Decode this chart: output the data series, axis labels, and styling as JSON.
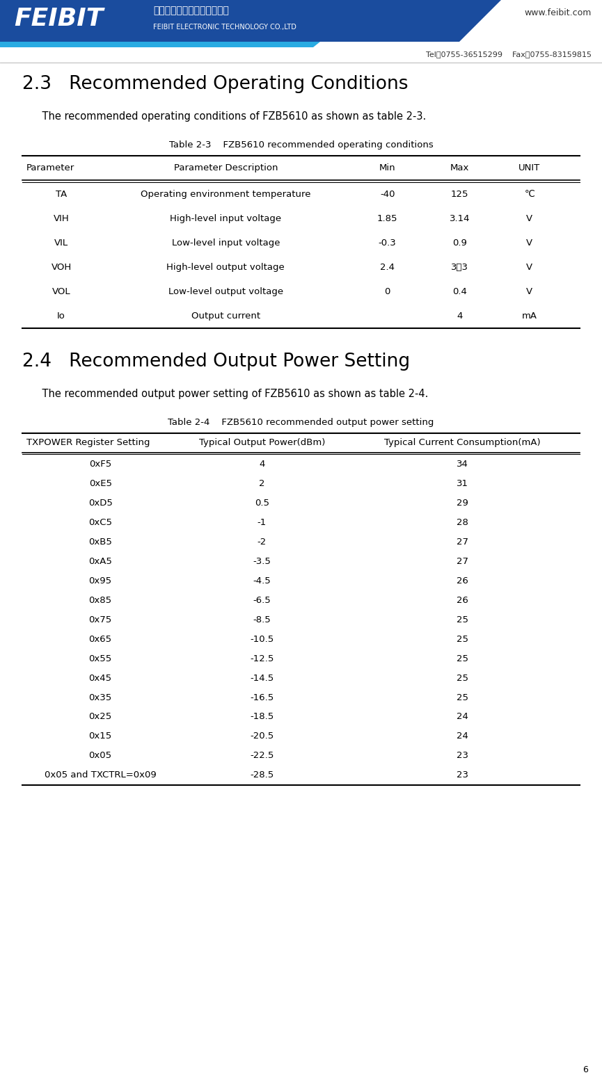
{
  "page_width": 8.65,
  "page_height": 15.56,
  "dpi": 100,
  "bg_color": "#ffffff",
  "header_website": "www.feibit.com",
  "header_tel_fax": "Tel：0755-36515299    Fax：0755-83159815",
  "section1_title": "2.3   Recommended Operating Conditions",
  "section1_intro": "    The recommended operating conditions of FZB5610 as shown as table 2-3.",
  "table1_caption": "Table 2-3    FZB5610 recommended operating conditions",
  "table1_headers": [
    "Parameter",
    "Parameter Description",
    "Min",
    "Max",
    "UNIT"
  ],
  "table1_header_aligns": [
    "left",
    "center",
    "center",
    "center",
    "center"
  ],
  "table1_data": [
    [
      "TA",
      "Operating environment temperature",
      "-40",
      "125",
      "℃"
    ],
    [
      "VIH",
      "High-level input voltage",
      "1.85",
      "3.14",
      "V"
    ],
    [
      "VIL",
      "Low-level input voltage",
      "-0.3",
      "0.9",
      "V"
    ],
    [
      "VOH",
      "High-level output voltage",
      "2.4",
      "3．3",
      "V"
    ],
    [
      "VOL",
      "Low-level output voltage",
      "0",
      "0.4",
      "V"
    ],
    [
      "Io",
      "Output current",
      "",
      "4",
      "mA"
    ]
  ],
  "table1_data_aligns": [
    "center",
    "center",
    "center",
    "center",
    "center"
  ],
  "section2_title": "2.4   Recommended Output Power Setting",
  "section2_intro": "    The recommended output power setting of FZB5610 as shown as table 2-4.",
  "table2_caption": "Table 2-4    FZB5610 recommended output power setting",
  "table2_headers": [
    "TXPOWER Register Setting",
    "Typical Output Power(dBm)",
    "Typical Current Consumption(mA)"
  ],
  "table2_header_aligns": [
    "left",
    "center",
    "center"
  ],
  "table2_data": [
    [
      "0xF5",
      "4",
      "34"
    ],
    [
      "0xE5",
      "2",
      "31"
    ],
    [
      "0xD5",
      "0.5",
      "29"
    ],
    [
      "0xC5",
      "-1",
      "28"
    ],
    [
      "0xB5",
      "-2",
      "27"
    ],
    [
      "0xA5",
      "-3.5",
      "27"
    ],
    [
      "0x95",
      "-4.5",
      "26"
    ],
    [
      "0x85",
      "-6.5",
      "26"
    ],
    [
      "0x75",
      "-8.5",
      "25"
    ],
    [
      "0x65",
      "-10.5",
      "25"
    ],
    [
      "0x55",
      "-12.5",
      "25"
    ],
    [
      "0x45",
      "-14.5",
      "25"
    ],
    [
      "0x35",
      "-16.5",
      "25"
    ],
    [
      "0x25",
      "-18.5",
      "24"
    ],
    [
      "0x15",
      "-20.5",
      "24"
    ],
    [
      "0x05",
      "-22.5",
      "23"
    ],
    [
      "0x05 and TXCTRL=0x09",
      "-28.5",
      "23"
    ]
  ],
  "table2_data_aligns": [
    "center",
    "center",
    "center"
  ],
  "page_number": "6",
  "header_blue": "#1a4c9e",
  "header_cyan": "#29abe2",
  "header_dark_blue": "#003399",
  "text_color": "#000000",
  "grey_text": "#555555",
  "title_fontsize": 19,
  "body_fontsize": 10.5,
  "caption_fontsize": 9.5,
  "table_fontsize": 9.5,
  "small_fontsize": 8.5
}
